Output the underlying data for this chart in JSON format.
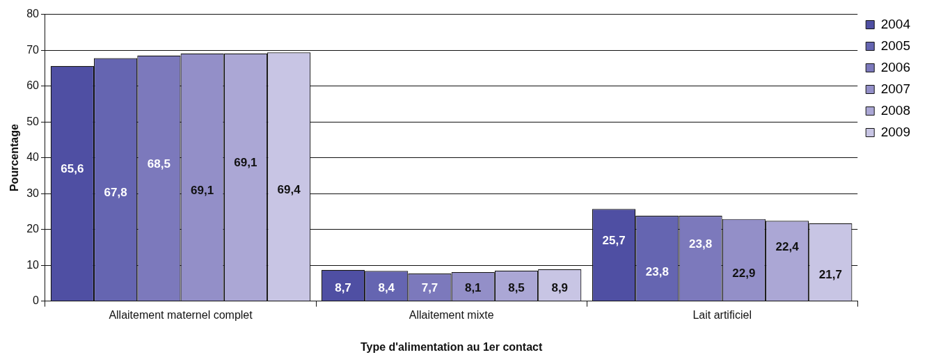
{
  "chart_data": {
    "type": "bar",
    "xlabel": "Type d'alimentation au 1er contact",
    "ylabel": "Pourcentage",
    "categories": [
      "Allaitement maternel complet",
      "Allaitement mixte",
      "Lait artificiel"
    ],
    "series": [
      {
        "name": "2004",
        "color": "#4f4fa3",
        "values": [
          65.6,
          8.7,
          25.7
        ],
        "value_labels": [
          "65,6",
          "8,7",
          "25,7"
        ]
      },
      {
        "name": "2005",
        "color": "#6565b1",
        "values": [
          67.8,
          8.4,
          23.8
        ],
        "value_labels": [
          "67,8",
          "8,4",
          "23,8"
        ]
      },
      {
        "name": "2006",
        "color": "#7c79bc",
        "values": [
          68.5,
          7.7,
          23.8
        ],
        "value_labels": [
          "68,5",
          "7,7",
          "23,8"
        ]
      },
      {
        "name": "2007",
        "color": "#938fc8",
        "values": [
          69.1,
          8.1,
          22.9
        ],
        "value_labels": [
          "69,1",
          "8,1",
          "22,9"
        ]
      },
      {
        "name": "2008",
        "color": "#aba7d5",
        "values": [
          69.1,
          8.5,
          22.4
        ],
        "value_labels": [
          "69,1",
          "8,5",
          "22,4"
        ]
      },
      {
        "name": "2009",
        "color": "#c8c5e4",
        "values": [
          69.4,
          8.9,
          21.7
        ],
        "value_labels": [
          "69,4",
          "8,9",
          "21,7"
        ]
      }
    ],
    "ylim": [
      0,
      80
    ],
    "yticks": [
      0,
      10,
      20,
      30,
      40,
      50,
      60,
      70,
      80
    ],
    "grid": "y",
    "legend": "top right"
  }
}
